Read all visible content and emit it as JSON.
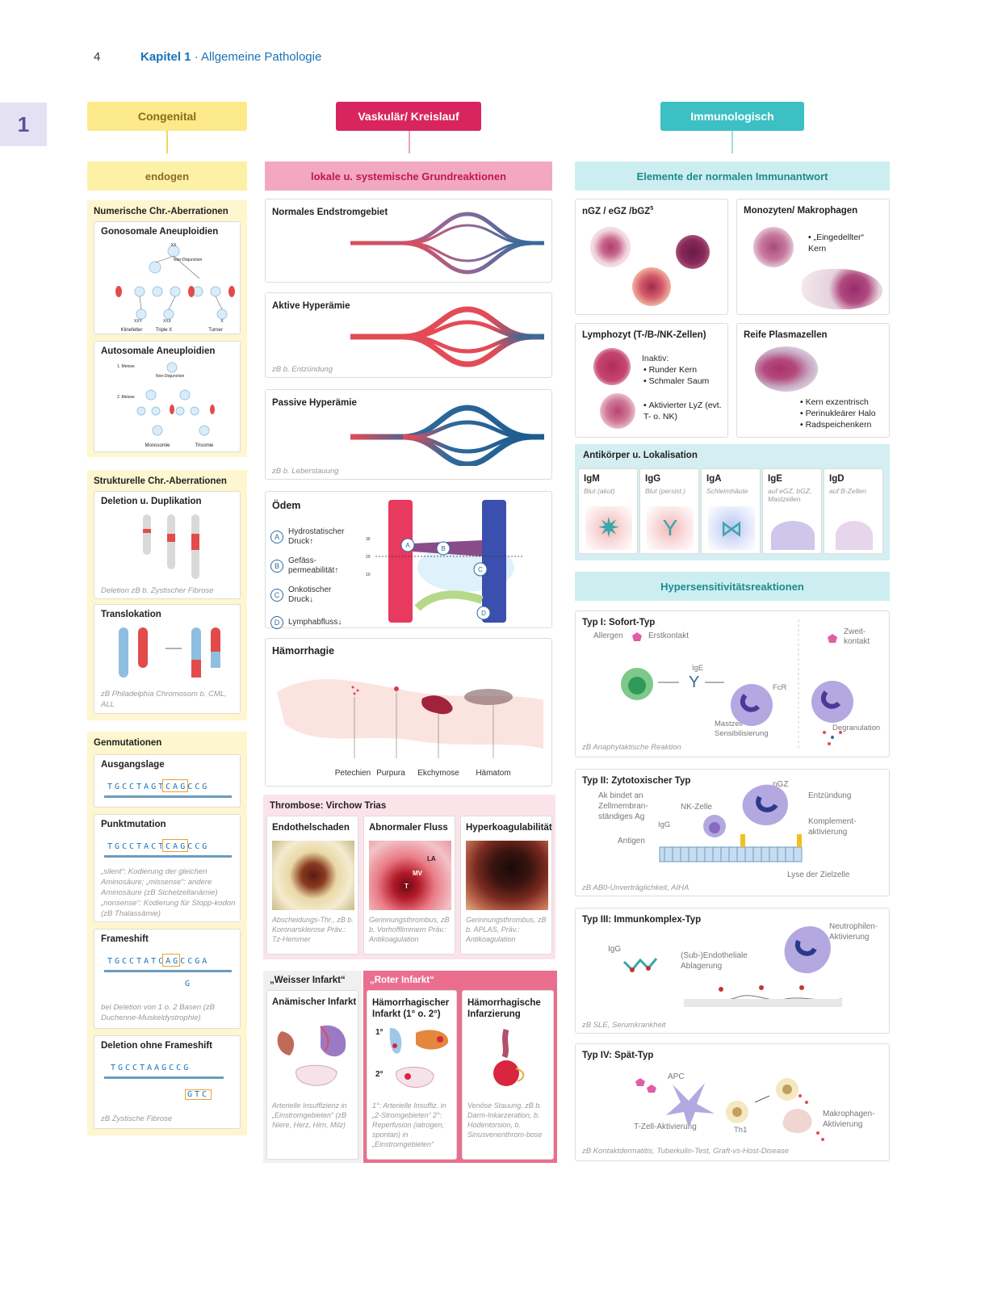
{
  "page": {
    "number": "4",
    "chapter_label": "Kapitel 1",
    "chapter_sep": " · ",
    "chapter_title": "Allgemeine Pathologie",
    "tab": "1"
  },
  "col1": {
    "header": "Congenital",
    "sub": "endogen",
    "num": {
      "title": "Numerische Chr.-Aberrationen",
      "gono": {
        "title": "Gonosomale Aneuploidien",
        "nd": "Non-Disjunction",
        "xx": "XX",
        "x": "X",
        "labels": [
          "XXY",
          "XXX",
          "X"
        ],
        "names": [
          "Klinefelter",
          "Triple X",
          "Turner"
        ]
      },
      "auto": {
        "title": "Autosomale Aneuploidien",
        "m1": "1. Meiose",
        "m2": "2. Meiose",
        "nd": "Non-Disjunction",
        "names": [
          "Monosomie",
          "Trisomie"
        ]
      }
    },
    "struct": {
      "title": "Strukturelle Chr.-Aberrationen",
      "del": {
        "title": "Deletion u. Duplikation",
        "cap": "Deletion zB b. Zystischer Fibrose"
      },
      "trans": {
        "title": "Translokation",
        "cap": "zB Philadelphia Chromosom b. CML, ALL"
      }
    },
    "gen": {
      "title": "Genmutationen",
      "ausg": {
        "title": "Ausgangslage",
        "seq": "TGCCTAGTCAGCCG"
      },
      "punkt": {
        "title": "Punktmutation",
        "seq": "TGCCTACTCAGCCG",
        "cap": "„silent“: Kodierung der gleichen Aminosäure; „missense“: andere Aminosäure (zB Sichelzellanämie) „nonsense“: Kodierung für Stopp-kodon (zB Thalassämie)"
      },
      "frame": {
        "title": "Frameshift",
        "seq": "TGCCTATCAGCCGA",
        "ins": "G",
        "cap": "bei Deletion von 1 o. 2 Basen (zB Duchenne-Muskeldystrophie)"
      },
      "delnf": {
        "title": "Deletion ohne Frameshift",
        "seq": "TGCCTAAGCCG",
        "ins": "GTC",
        "cap": "zB Zystische Fibrose"
      }
    }
  },
  "col2": {
    "header": "Vaskulär/ Kreislauf",
    "sub": "lokale u. systemische Grundreaktionen",
    "normal": {
      "title": "Normales Endstromgebiet"
    },
    "aktiv": {
      "title": "Aktive Hyperämie",
      "cap": "zB b. Entzündung"
    },
    "passiv": {
      "title": "Passive Hyperämie",
      "cap": "zB b. Leberstauung"
    },
    "odem": {
      "title": "Ödem",
      "items": [
        {
          "k": "A",
          "t": "Hydrostatischer Druck↑"
        },
        {
          "k": "B",
          "t": "Gefäss-permeabilität↑"
        },
        {
          "k": "C",
          "t": "Onkotischer Druck↓"
        },
        {
          "k": "D",
          "t": "Lymphabfluss↓"
        }
      ],
      "axis": [
        "30",
        "20",
        "10"
      ]
    },
    "haem": {
      "title": "Hämorrhagie",
      "labels": [
        "Petechien",
        "Purpura",
        "Ekchymose",
        "Hämatom"
      ]
    },
    "thromb": {
      "title": "Thrombose: Virchow Trias",
      "items": [
        {
          "title": "Endothelschaden",
          "cap": "Abscheidungs-Thr., zB b. Koronarsklerose Präv.: Tz-Hemmer"
        },
        {
          "title": "Abnormaler Fluss",
          "cap": "Gerinnungsthrombus, zB b. Vorhofflimmern Präv.: Antikoagulation",
          "img": [
            "LA",
            "MV",
            "T"
          ]
        },
        {
          "title": "Hyperkoagulabilität",
          "cap": "Gerinnungsthrombus, zB b. APLAS, Präv.: Antikoagulation"
        }
      ]
    },
    "infarkt": {
      "weiss": "„Weisser Infarkt“",
      "rot": "„Roter Infarkt“",
      "items": [
        {
          "title": "Anämischer Infarkt",
          "cap": "Arterielle Insuffizienz in „Einstromgebieten“ (zB Niere, Herz, Hirn, Milz)"
        },
        {
          "title": "Hämorrhagischer Infarkt (1° o. 2°)",
          "cap": "1°: Arterielle Insuffiz. in „2-Stromgebieten“ 2°: Reperfusion (iatrogen, spontan) in „Einstromgebieten“",
          "marks": [
            "1°",
            "2°"
          ]
        },
        {
          "title": "Hämorrhagische Infarzierung",
          "cap": "Venöse Stauung, zB b. Darm-Inkarzeration, b. Hodentorsion, b. Sinusvenenthrom-bose"
        }
      ]
    }
  },
  "col3": {
    "header": "Immunologisch",
    "sub": "Elemente der normalen Immunantwort",
    "ngz": {
      "title": "nGZ / eGZ /bGZ",
      "sup": "5"
    },
    "mono": {
      "title": "Monozyten/ Makrophagen",
      "items": [
        "„Eingedellter“ Kern"
      ]
    },
    "lymph": {
      "title": "Lymphozyt (T-/B-/NK-Zellen)",
      "inaktiv": "Inaktiv:",
      "items": [
        "Runder Kern",
        "Schmaler Saum"
      ],
      "items2": [
        "Aktivierter LyZ (evt. T- o. NK)"
      ]
    },
    "plasma": {
      "title": "Reife Plasmazellen",
      "items": [
        "Kern exzentrisch",
        "Perinukleärer Halo",
        "Radspeichenkern"
      ]
    },
    "ak": {
      "title": "Antikörper u. Lokalisation",
      "items": [
        {
          "n": "IgM",
          "l": "Blut (akut)"
        },
        {
          "n": "IgG",
          "l": "Blut (persist.)"
        },
        {
          "n": "IgA",
          "l": "Schleimhäute"
        },
        {
          "n": "IgE",
          "l": "auf eGZ, bGZ, Mastzellen"
        },
        {
          "n": "IgD",
          "l": "auf B-Zellen"
        }
      ]
    },
    "hyper": {
      "title": "Hypersensitivitätsreaktionen",
      "t1": {
        "title": "Typ I: Sofort-Typ",
        "labels": [
          "Allergen",
          "Erstkontakt",
          "IgE",
          "FcR",
          "Mastzell-Sensibilisierung",
          "Zweit-kontakt",
          "Degranulation"
        ],
        "cap": "zB Anaphylaktische Reaktion"
      },
      "t2": {
        "title": "Typ II: Zytotoxischer Typ",
        "labels": [
          "Ak bindet an Zellmembran-ständiges Ag",
          "NK-Zelle",
          "nGZ",
          "Entzündung",
          "IgG",
          "Antigen",
          "Komplement-aktivierung",
          "Lyse der Zielzelle"
        ],
        "cap": "zB AB0-Unverträglichkeit, AIHA"
      },
      "t3": {
        "title": "Typ III: Immunkomplex-Typ",
        "labels": [
          "IgG",
          "(Sub-)Endotheliale Ablagerung",
          "Neutrophilen-Aktivierung"
        ],
        "cap": "zB SLE, Serumkrankheit"
      },
      "t4": {
        "title": "Typ IV: Spät-Typ",
        "labels": [
          "APC",
          "T-Zell-Aktivierung",
          "Th1",
          "Makrophagen-Aktivierung"
        ],
        "cap": "zB Kontaktdermatitis, Tuberkulin-Test, Graft-vs-Host-Disease"
      }
    }
  },
  "colors": {
    "yellow": "#fce98a",
    "pink": "#d9255f",
    "teal": "#3cc0c4"
  }
}
